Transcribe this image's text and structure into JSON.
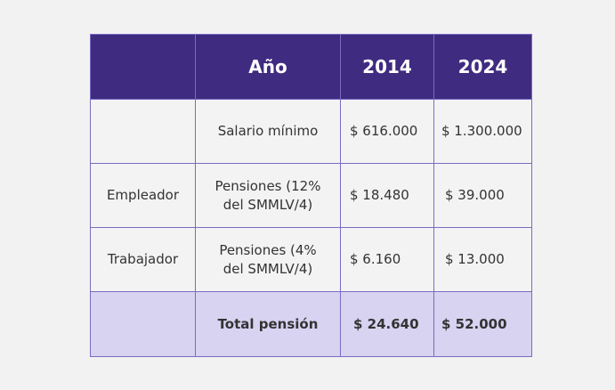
{
  "table": {
    "header": [
      "Año",
      "2014",
      "2024"
    ],
    "rows": [
      {
        "concept": "Salario mínimo",
        "values": [
          "$ 616.000",
          "$ 1.300.000"
        ]
      },
      {
        "group": "Empleador",
        "concept": "Pensiones (12%\ndel SMMLV/4)",
        "values": [
          "$ 18.480",
          "$ 39.000"
        ]
      },
      {
        "group": "Trabajador",
        "concept": "Pensiones (4%\ndel SMMLV/4)",
        "values": [
          "$ 6.160",
          "$ 13.000"
        ]
      }
    ],
    "total": {
      "concept": "Total pensión",
      "values": [
        "$ 24.640",
        "$ 52.000"
      ]
    }
  }
}
